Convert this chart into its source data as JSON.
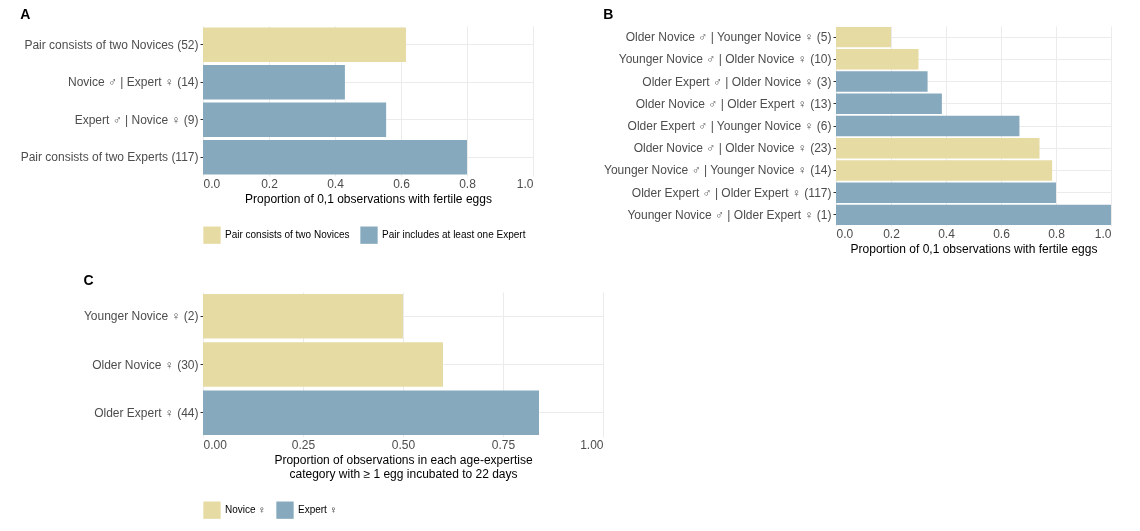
{
  "chart_data": [
    {
      "type": "bar",
      "title": "A",
      "orientation": "horizontal",
      "categories": [
        "Pair consists of two Novices (52)",
        "Novice ♂ | Expert ♀ (14)",
        "Expert ♂ | Novice ♀ (9)",
        "Pair consists of two Experts (117)"
      ],
      "series": [
        {
          "name": "Pair consists of two Novices",
          "color": "#e6dba3",
          "values": [
            0.615,
            null,
            null,
            null
          ]
        },
        {
          "name": "Pair includes at least one Expert",
          "color": "#86a9bd",
          "values": [
            null,
            0.43,
            0.555,
            0.8
          ]
        }
      ],
      "xlabel": "Proportion of 0,1 observations with fertile eggs",
      "xlim": [
        0,
        1
      ],
      "xticks": [
        {
          "value": 0,
          "label": "0.0"
        },
        0.2,
        0.4,
        0.6,
        0.8,
        {
          "value": 1,
          "label": "1.0"
        }
      ],
      "grid": true,
      "legend": "bottom"
    },
    {
      "type": "bar",
      "title": "B",
      "orientation": "horizontal",
      "categories": [
        "Older Novice ♂ | Younger Novice ♀ (5)",
        "Younger Novice ♂ | Older Novice ♀ (10)",
        "Older Expert ♂ | Older Novice ♀ (3)",
        "Older Novice ♂ | Older Expert ♀ (13)",
        "Older Expert ♂ | Younger Novice ♀ (6)",
        "Older Novice ♂ | Older Novice ♀ (23)",
        "Younger Novice ♂ | Younger Novice ♀ (14)",
        "Older Expert ♂ | Older Expert ♀ (117)",
        "Younger Novice ♂ | Older Expert ♀ (1)"
      ],
      "values": [
        0.2,
        0.3,
        0.333,
        0.385,
        0.667,
        0.74,
        0.786,
        0.8,
        1.0
      ],
      "colors": [
        "#e6dba3",
        "#e6dba3",
        "#86a9bd",
        "#86a9bd",
        "#86a9bd",
        "#e6dba3",
        "#e6dba3",
        "#86a9bd",
        "#86a9bd"
      ],
      "xlabel": "Proportion of 0,1 observations with fertile eggs",
      "xlim": [
        0,
        1
      ],
      "xticks": [
        {
          "value": 0,
          "label": "0.0"
        },
        0.2,
        0.4,
        0.6,
        0.8,
        {
          "value": 1,
          "label": "1.0"
        }
      ],
      "grid": true
    },
    {
      "type": "bar",
      "title": "C",
      "orientation": "horizontal",
      "categories": [
        "Younger Novice ♀ (2)",
        "Older Novice ♀ (30)",
        "Older Expert ♀ (44)"
      ],
      "series": [
        {
          "name": "Novice ♀",
          "color": "#e6dba3",
          "values": [
            0.5,
            0.6,
            null
          ]
        },
        {
          "name": "Expert ♀",
          "color": "#86a9bd",
          "values": [
            null,
            null,
            0.84
          ]
        }
      ],
      "xlabel": "Proportion of observations in each age-expertise\n category with ≥ 1 egg incubated to 22 days",
      "xlim": [
        0,
        1
      ],
      "xticks": [
        {
          "value": 0,
          "label": "0.00"
        },
        0.25,
        {
          "value": 0.5,
          "label": "0.50"
        },
        0.75,
        {
          "value": 1,
          "label": "1.00"
        }
      ],
      "grid": true,
      "legend": "bottom"
    }
  ]
}
